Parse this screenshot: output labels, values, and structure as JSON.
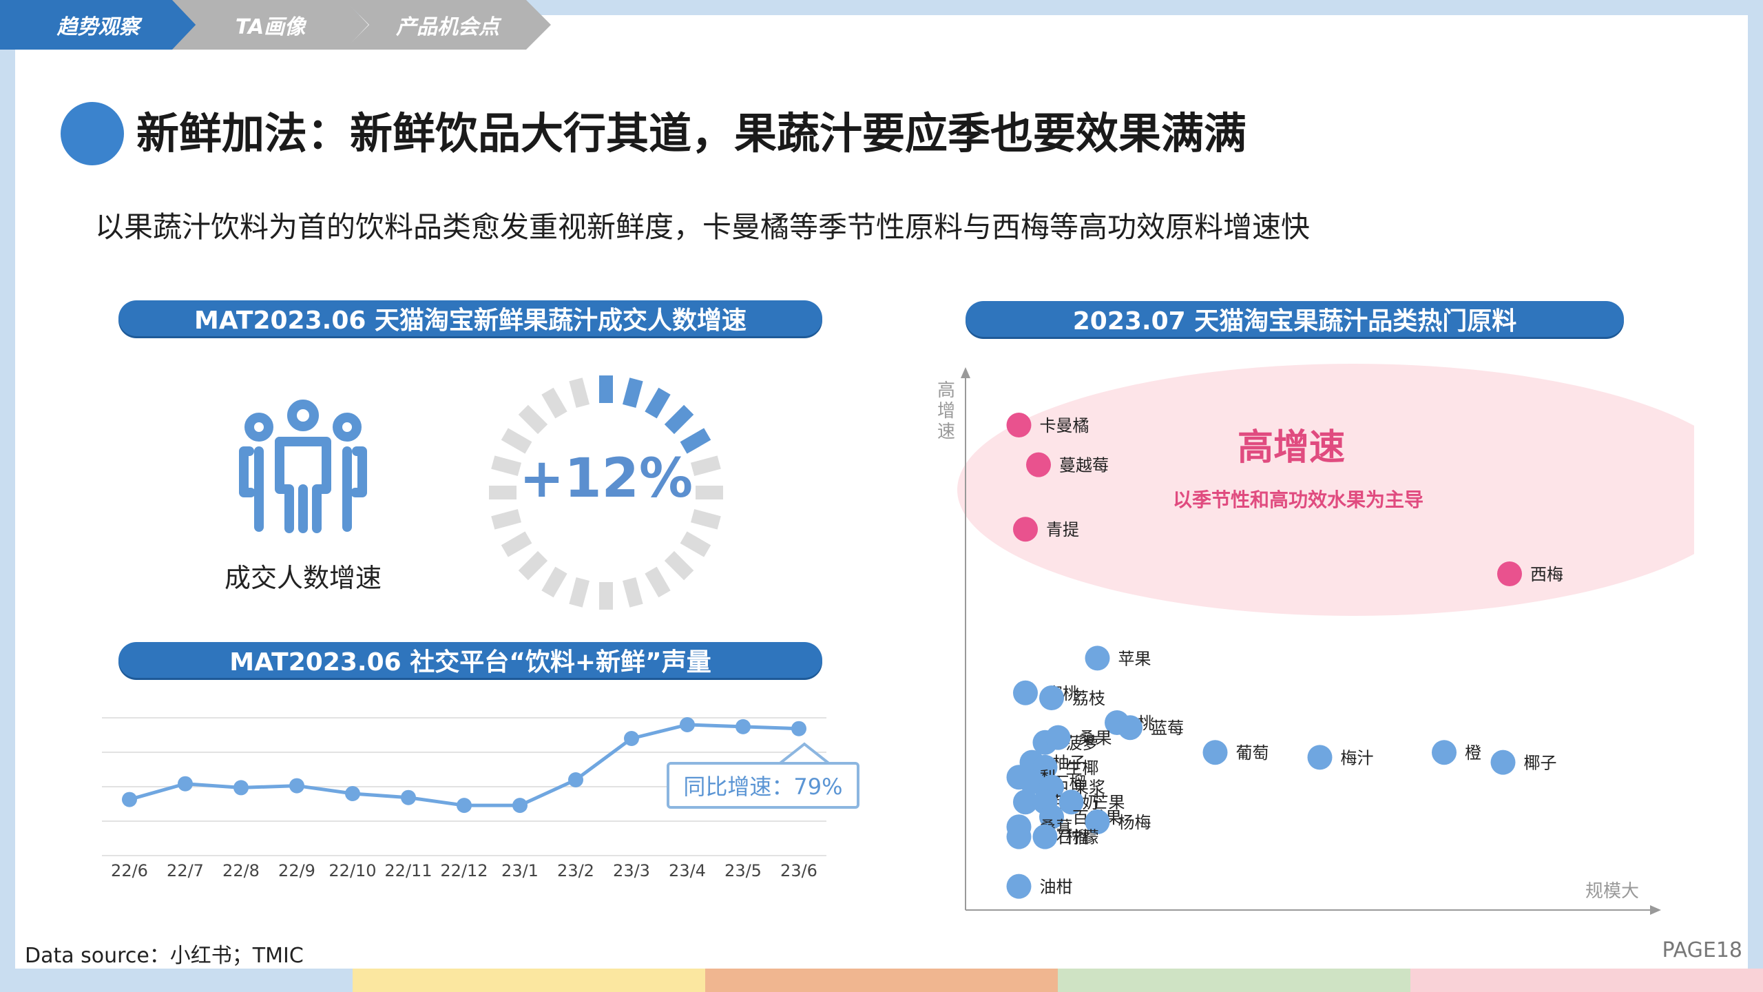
{
  "breadcrumbs": [
    {
      "label": "趋势观察",
      "color": "#2f75bd"
    },
    {
      "label": "TA画像",
      "color": "#b3b3b3"
    },
    {
      "label": "产品机会点",
      "color": "#b3b3b3"
    }
  ],
  "title": "新鲜加法：新鲜饮品大行其道，果蔬汁要应季也要效果满满",
  "subtitle": "以果蔬汁饮料为首的饮料品类愈发重视新鲜度，卡曼橘等季节性原料与西梅等高功效原料增速快",
  "left_top": {
    "header": "MAT2023.06 天猫淘宝新鲜果蔬汁成交人数增速",
    "people_label": "成交人数增速",
    "growth_value": "+12%",
    "growth_fraction": 0.12
  },
  "left_bottom": {
    "header": "MAT2023.06 社交平台“饮料+新鲜”声量",
    "callout": "同比增速：79%"
  },
  "right": {
    "header": "2023.07 天猫淘宝果蔬汁品类热门原料",
    "y_axis_label": [
      "高",
      "增",
      "速"
    ],
    "x_axis_label": "规模大",
    "highlight_title": "高增速",
    "highlight_subtitle": "以季节性和高功效水果为主导"
  },
  "chart_data": [
    {
      "type": "line",
      "categories": [
        "22/6",
        "22/7",
        "22/8",
        "22/9",
        "22/10",
        "22/11",
        "22/12",
        "23/1",
        "23/2",
        "23/3",
        "23/4",
        "23/5",
        "23/6"
      ],
      "series": [
        {
          "values": [
            25,
            33,
            31,
            32,
            28,
            26,
            22,
            22,
            35,
            56,
            63,
            62,
            61
          ]
        }
      ],
      "ylim": [
        0,
        70
      ],
      "grid": true,
      "annotation": "同比增速：79%"
    },
    {
      "type": "scatter",
      "xlabel": "规模大",
      "ylabel": "高增速",
      "xlim": [
        0,
        100
      ],
      "ylim": [
        0,
        100
      ],
      "points": [
        {
          "name": "卡曼橘",
          "x": 5,
          "y": 95,
          "group": "high"
        },
        {
          "name": "蔓越莓",
          "x": 8,
          "y": 87,
          "group": "high"
        },
        {
          "name": "青提",
          "x": 6,
          "y": 74,
          "group": "high"
        },
        {
          "name": "西梅",
          "x": 80,
          "y": 65,
          "group": "high"
        },
        {
          "name": "苹果",
          "x": 17,
          "y": 48,
          "group": "normal"
        },
        {
          "name": "蜜桃",
          "x": 6,
          "y": 41,
          "group": "normal"
        },
        {
          "name": "荔枝",
          "x": 10,
          "y": 40,
          "group": "normal"
        },
        {
          "name": "桃",
          "x": 20,
          "y": 35,
          "group": "normal"
        },
        {
          "name": "蓝莓",
          "x": 22,
          "y": 34,
          "group": "normal"
        },
        {
          "name": "菠萝",
          "x": 9,
          "y": 31,
          "group": "normal"
        },
        {
          "name": "桑果",
          "x": 11,
          "y": 32,
          "group": "normal"
        },
        {
          "name": "葡萄",
          "x": 35,
          "y": 29,
          "group": "normal"
        },
        {
          "name": "梅汁",
          "x": 51,
          "y": 28,
          "group": "normal"
        },
        {
          "name": "橙",
          "x": 70,
          "y": 29,
          "group": "normal"
        },
        {
          "name": "椰子",
          "x": 79,
          "y": 27,
          "group": "normal"
        },
        {
          "name": "柚子",
          "x": 7,
          "y": 27,
          "group": "normal"
        },
        {
          "name": "生椰",
          "x": 9,
          "y": 26,
          "group": "normal"
        },
        {
          "name": "梨",
          "x": 5,
          "y": 24,
          "group": "normal"
        },
        {
          "name": "石榴",
          "x": 7,
          "y": 23,
          "group": "normal"
        },
        {
          "name": "果浆",
          "x": 10,
          "y": 22,
          "group": "normal"
        },
        {
          "name": "芭乐",
          "x": 6,
          "y": 19,
          "group": "normal"
        },
        {
          "name": "椰奶",
          "x": 9,
          "y": 19,
          "group": "normal"
        },
        {
          "name": "芒果",
          "x": 13,
          "y": 19,
          "group": "normal"
        },
        {
          "name": "百香果",
          "x": 10,
          "y": 16,
          "group": "normal"
        },
        {
          "name": "桑葚",
          "x": 5,
          "y": 14,
          "group": "normal"
        },
        {
          "name": "杨梅",
          "x": 17,
          "y": 15,
          "group": "normal"
        },
        {
          "name": "番石榴",
          "x": 5,
          "y": 12,
          "group": "normal"
        },
        {
          "name": "柠檬",
          "x": 9,
          "y": 12,
          "group": "normal"
        },
        {
          "name": "油柑",
          "x": 5,
          "y": 2,
          "group": "normal"
        }
      ]
    }
  ],
  "footer": {
    "source": "Data source：小红书；TMIC",
    "page": "PAGE18"
  },
  "colors": {
    "brand_blue": "#2f75bd",
    "point_blue": "#6fa6e0",
    "point_pink": "#e9528e",
    "highlight_fill": "#fde4e8",
    "highlight_text": "#e04b7f",
    "strip": [
      "#c9ddf0",
      "#fbe7a0",
      "#f0b690",
      "#cfe3c4",
      "#f9d2d7"
    ]
  }
}
